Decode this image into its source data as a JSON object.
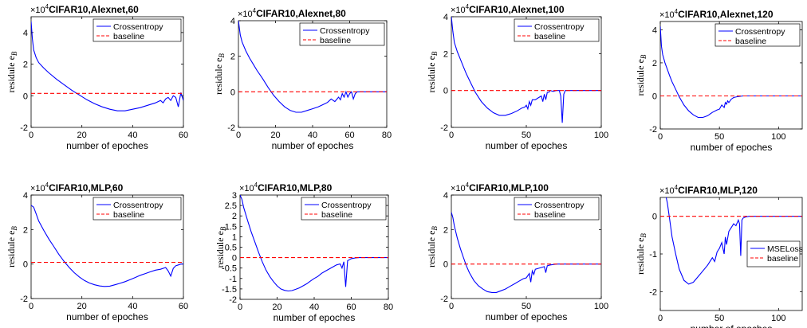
{
  "chart_data": [
    {
      "type": "line",
      "title": "CIFAR10,Alexnet,60",
      "exponent_label": "×10",
      "exponent": "4",
      "xlabel": "number of epoches",
      "ylabel": "residule e",
      "ylabel_sub": "B",
      "xlim": [
        0,
        60
      ],
      "ylim": [
        -2,
        5
      ],
      "xticks": [
        "0",
        "20",
        "40",
        "60"
      ],
      "yticks": [
        "-2",
        "0",
        "2",
        "4"
      ],
      "legend": {
        "position": "top-right"
      },
      "series": [
        {
          "name": "Crossentropy",
          "color": "#0000ff",
          "style": "solid",
          "x": [
            0,
            0.5,
            1,
            2,
            3,
            5,
            7,
            10,
            13,
            16,
            19,
            22,
            25,
            28,
            31,
            34,
            37,
            40,
            43,
            46,
            49,
            51,
            52,
            53,
            54,
            55,
            56,
            57,
            58,
            59,
            60
          ],
          "y": [
            4.7,
            3.6,
            2.9,
            2.4,
            2.1,
            1.75,
            1.45,
            1.05,
            0.7,
            0.35,
            0.05,
            -0.25,
            -0.5,
            -0.7,
            -0.85,
            -0.95,
            -0.95,
            -0.85,
            -0.75,
            -0.6,
            -0.45,
            -0.3,
            -0.45,
            -0.2,
            -0.1,
            -0.3,
            0.0,
            -0.1,
            -0.7,
            0.2,
            -0.3
          ]
        },
        {
          "name": "baseline",
          "color": "#ff0000",
          "style": "dashed",
          "x": [
            0,
            60
          ],
          "y": [
            0.15,
            0.15
          ]
        }
      ]
    },
    {
      "type": "line",
      "title": "CIFAR10,Alexnet,80",
      "exponent_label": "×10",
      "exponent": "4",
      "xlabel": "number of epoches",
      "ylabel": "residule e",
      "ylabel_sub": "B",
      "xlim": [
        0,
        80
      ],
      "ylim": [
        -2,
        4
      ],
      "xticks": [
        "0",
        "20",
        "40",
        "60",
        "80"
      ],
      "yticks": [
        "-2",
        "0",
        "2",
        "4"
      ],
      "legend": {
        "position": "top-right"
      },
      "series": [
        {
          "name": "Crossentropy",
          "color": "#0000ff",
          "style": "solid",
          "x": [
            0,
            1,
            2,
            4,
            6,
            8,
            10,
            13,
            16,
            19,
            22,
            25,
            28,
            31,
            34,
            37,
            40,
            43,
            46,
            48,
            50,
            52,
            54,
            55,
            56,
            57,
            58,
            59,
            60,
            61,
            62,
            63,
            64,
            66,
            70,
            75,
            80
          ],
          "y": [
            4.0,
            3.2,
            2.8,
            2.3,
            1.9,
            1.55,
            1.2,
            0.75,
            0.25,
            -0.2,
            -0.55,
            -0.85,
            -1.05,
            -1.15,
            -1.15,
            -1.05,
            -0.95,
            -0.85,
            -0.7,
            -0.6,
            -0.4,
            -0.55,
            -0.3,
            -0.45,
            -0.1,
            -0.3,
            0.0,
            -0.3,
            -0.1,
            0.0,
            -0.4,
            -0.1,
            0.0,
            0.0,
            0.0,
            0.0,
            0.0
          ]
        },
        {
          "name": "baseline",
          "color": "#ff0000",
          "style": "dashed",
          "x": [
            0,
            80
          ],
          "y": [
            0,
            0
          ]
        }
      ]
    },
    {
      "type": "line",
      "title": "CIFAR10,Alexnet,100",
      "exponent_label": "×10",
      "exponent": "4",
      "xlabel": "number of epoches",
      "ylabel": "residule e",
      "ylabel_sub": "B",
      "xlim": [
        0,
        100
      ],
      "ylim": [
        -2,
        4
      ],
      "xticks": [
        "0",
        "50",
        "100"
      ],
      "yticks": [
        "-2",
        "0",
        "2",
        "4"
      ],
      "legend": {
        "position": "top-right"
      },
      "series": [
        {
          "name": "Crossentropy",
          "color": "#0000ff",
          "style": "solid",
          "x": [
            0,
            1,
            2,
            4,
            6,
            8,
            10,
            13,
            16,
            20,
            24,
            28,
            32,
            36,
            40,
            44,
            47,
            49,
            50,
            51,
            52,
            53,
            54,
            56,
            58,
            60,
            61,
            62,
            63,
            64,
            65,
            66,
            68,
            70,
            72,
            73,
            74,
            75,
            76,
            78,
            80,
            85,
            90,
            100
          ],
          "y": [
            4.0,
            3.2,
            2.6,
            2.1,
            1.7,
            1.3,
            0.9,
            0.4,
            -0.1,
            -0.6,
            -0.95,
            -1.2,
            -1.35,
            -1.35,
            -1.25,
            -1.1,
            -0.95,
            -0.9,
            -0.8,
            -1.0,
            -0.6,
            -0.8,
            -0.5,
            -0.5,
            -0.4,
            -0.3,
            -0.6,
            -0.2,
            -0.5,
            -0.1,
            -0.1,
            0.0,
            -0.05,
            0.0,
            0.0,
            -0.3,
            -1.75,
            -0.2,
            0.0,
            0.0,
            0.0,
            0.0,
            0.0,
            0.0
          ]
        },
        {
          "name": "baseline",
          "color": "#ff0000",
          "style": "dashed",
          "x": [
            0,
            100
          ],
          "y": [
            0,
            0
          ]
        }
      ]
    },
    {
      "type": "line",
      "title": "CIFAR10,Alexnet,120",
      "exponent_label": "×10",
      "exponent": "4",
      "xlabel": "number of epoches",
      "ylabel": "residule e",
      "ylabel_sub": "B",
      "xlim": [
        0,
        120
      ],
      "ylim": [
        -2,
        4.5
      ],
      "xticks": [
        "0",
        "50",
        "100"
      ],
      "yticks": [
        "-2",
        "0",
        "2",
        "4"
      ],
      "legend": {
        "position": "top-right"
      },
      "series": [
        {
          "name": "Crossentropy",
          "color": "#0000ff",
          "style": "solid",
          "x": [
            0,
            1,
            2,
            4,
            6,
            8,
            10,
            13,
            16,
            20,
            24,
            28,
            32,
            36,
            40,
            44,
            48,
            50,
            52,
            54,
            55,
            56,
            57,
            58,
            60,
            62,
            65,
            70,
            80,
            90,
            100,
            110,
            120
          ],
          "y": [
            4.2,
            3.0,
            2.5,
            2.0,
            1.6,
            1.2,
            0.85,
            0.4,
            -0.05,
            -0.55,
            -0.9,
            -1.15,
            -1.3,
            -1.3,
            -1.2,
            -1.0,
            -0.85,
            -0.8,
            -0.55,
            -0.7,
            -0.4,
            -0.5,
            -0.3,
            -0.4,
            -0.2,
            -0.1,
            -0.05,
            0.0,
            0.0,
            0.0,
            0.0,
            0.0,
            0.0
          ]
        },
        {
          "name": "baseline",
          "color": "#ff0000",
          "style": "dashed",
          "x": [
            0,
            120
          ],
          "y": [
            0,
            0
          ]
        }
      ]
    },
    {
      "type": "line",
      "title": "CIFAR10,MLP,60",
      "exponent_label": "×10",
      "exponent": "4",
      "xlabel": "number of epoches",
      "ylabel": "residule e",
      "ylabel_sub": "B",
      "xlim": [
        0,
        60
      ],
      "ylim": [
        -2,
        4
      ],
      "xticks": [
        "0",
        "20",
        "40",
        "60"
      ],
      "yticks": [
        "-2",
        "0",
        "2",
        "4"
      ],
      "legend": {
        "position": "top-right"
      },
      "series": [
        {
          "name": "Crossentropy",
          "color": "#0000ff",
          "style": "solid",
          "x": [
            0,
            1,
            2,
            3,
            5,
            7,
            9,
            11,
            13,
            15,
            17,
            19,
            21,
            23,
            25,
            27,
            29,
            31,
            33,
            35,
            37,
            39,
            41,
            43,
            45,
            47,
            49,
            51,
            53,
            54,
            55,
            56,
            57,
            58,
            59,
            60
          ],
          "y": [
            3.4,
            3.3,
            2.9,
            2.5,
            1.95,
            1.45,
            1.0,
            0.55,
            0.15,
            -0.2,
            -0.5,
            -0.75,
            -0.95,
            -1.1,
            -1.2,
            -1.27,
            -1.3,
            -1.28,
            -1.2,
            -1.12,
            -1.02,
            -0.9,
            -0.78,
            -0.65,
            -0.55,
            -0.45,
            -0.35,
            -0.3,
            -0.2,
            -0.4,
            -0.7,
            -0.25,
            -0.1,
            -0.05,
            0.0,
            0.0
          ]
        },
        {
          "name": "baseline",
          "color": "#ff0000",
          "style": "dashed",
          "x": [
            0,
            60
          ],
          "y": [
            0.1,
            0.1
          ]
        }
      ]
    },
    {
      "type": "line",
      "title": "CIFAR10,MLP,80",
      "exponent_label": "×10",
      "exponent": "4",
      "xlabel": "number of epoches",
      "ylabel": "residule e",
      "ylabel_sub": "B",
      "xlim": [
        0,
        80
      ],
      "ylim": [
        -2,
        3
      ],
      "xticks": [
        "0",
        "20",
        "40",
        "60",
        "80"
      ],
      "yticks": [
        "-2",
        "-1.5",
        "-1",
        "-0.5",
        "0",
        "0.5",
        "1",
        "1.5",
        "2",
        "2.5",
        "3"
      ],
      "legend": {
        "position": "top-right"
      },
      "series": [
        {
          "name": "Crossentropy",
          "color": "#0000ff",
          "style": "solid",
          "x": [
            0,
            1,
            2,
            4,
            6,
            8,
            10,
            12,
            14,
            16,
            18,
            20,
            22,
            24,
            26,
            28,
            30,
            32,
            34,
            36,
            38,
            40,
            42,
            44,
            46,
            48,
            50,
            52,
            54,
            55,
            56,
            57,
            58,
            59,
            60,
            62,
            64,
            66,
            70,
            75,
            80
          ],
          "y": [
            3.0,
            2.8,
            2.4,
            1.8,
            1.25,
            0.75,
            0.25,
            -0.2,
            -0.6,
            -0.9,
            -1.15,
            -1.35,
            -1.5,
            -1.57,
            -1.6,
            -1.58,
            -1.52,
            -1.45,
            -1.35,
            -1.25,
            -1.12,
            -1.0,
            -0.9,
            -0.75,
            -0.65,
            -0.55,
            -0.45,
            -0.35,
            -0.3,
            -0.5,
            -0.2,
            -1.4,
            -0.15,
            -0.1,
            -0.05,
            -0.02,
            0.0,
            0.0,
            0.0,
            0.0,
            0.0
          ]
        },
        {
          "name": "baseline",
          "color": "#ff0000",
          "style": "dashed",
          "x": [
            0,
            80
          ],
          "y": [
            0,
            0
          ]
        }
      ]
    },
    {
      "type": "line",
      "title": "CIFAR10,MLP,100",
      "exponent_label": "×10",
      "exponent": "4",
      "xlabel": "number of epoches",
      "ylabel": "residule e",
      "ylabel_sub": "B",
      "xlim": [
        0,
        100
      ],
      "ylim": [
        -2,
        4
      ],
      "xticks": [
        "0",
        "50",
        "100"
      ],
      "yticks": [
        "-2",
        "0",
        "2",
        "4"
      ],
      "legend": {
        "position": "top-right"
      },
      "series": [
        {
          "name": "Crossentropy",
          "color": "#0000ff",
          "style": "solid",
          "x": [
            0,
            1,
            2,
            4,
            6,
            8,
            10,
            12,
            15,
            18,
            21,
            24,
            27,
            30,
            33,
            36,
            39,
            42,
            45,
            48,
            50,
            52,
            53,
            54,
            55,
            56,
            58,
            60,
            62,
            63,
            64,
            66,
            70,
            75,
            80,
            90,
            100
          ],
          "y": [
            3.0,
            2.7,
            2.2,
            1.5,
            0.9,
            0.4,
            -0.1,
            -0.5,
            -0.95,
            -1.25,
            -1.45,
            -1.6,
            -1.65,
            -1.65,
            -1.55,
            -1.45,
            -1.3,
            -1.15,
            -1.0,
            -0.85,
            -0.8,
            -0.55,
            -1.05,
            -0.4,
            -0.6,
            -0.3,
            -0.25,
            -0.2,
            -0.15,
            -0.5,
            -0.1,
            -0.05,
            0.0,
            0.0,
            0.0,
            0.0,
            0.0
          ]
        },
        {
          "name": "baseline",
          "color": "#ff0000",
          "style": "dashed",
          "x": [
            0,
            100
          ],
          "y": [
            0,
            0
          ]
        }
      ]
    },
    {
      "type": "line",
      "title": "CIFAR10,MLP,120",
      "exponent_label": "×10",
      "exponent": "4",
      "xlabel": "number of epoches",
      "ylabel": "residule e",
      "ylabel_sub": "B",
      "xlim": [
        0,
        120
      ],
      "ylim": [
        -2.5,
        0.5
      ],
      "xticks": [
        "0",
        "50",
        "100"
      ],
      "yticks": [
        "-2",
        "-1",
        "0"
      ],
      "legend": {
        "position": "bottom-right"
      },
      "series": [
        {
          "name": "MSELoss",
          "color": "#0000ff",
          "style": "solid",
          "x": [
            5,
            6,
            8,
            10,
            13,
            16,
            20,
            24,
            28,
            32,
            36,
            40,
            44,
            46,
            48,
            50,
            52,
            54,
            55,
            56,
            58,
            60,
            62,
            64,
            66,
            67,
            68,
            69,
            70,
            72,
            75,
            80,
            90,
            100,
            110,
            120
          ],
          "y": [
            0.5,
            0.35,
            -0.1,
            -0.55,
            -1.0,
            -1.4,
            -1.7,
            -1.8,
            -1.75,
            -1.6,
            -1.45,
            -1.3,
            -1.1,
            -1.2,
            -0.95,
            -0.85,
            -0.7,
            -1.0,
            -0.55,
            -0.75,
            -0.4,
            -0.3,
            -0.2,
            -0.25,
            -0.1,
            -0.2,
            -1.05,
            -0.1,
            -0.05,
            -0.02,
            0.0,
            0.0,
            0.0,
            0.0,
            0.0,
            0.0
          ]
        },
        {
          "name": "baseline",
          "color": "#ff0000",
          "style": "dashed",
          "x": [
            0,
            120
          ],
          "y": [
            0,
            0
          ]
        }
      ]
    }
  ]
}
